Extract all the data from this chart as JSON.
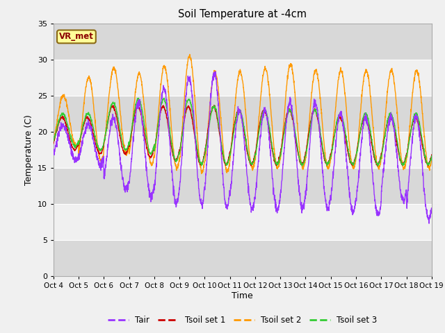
{
  "title": "Soil Temperature at -4cm",
  "xlabel": "Time",
  "ylabel": "Temperature (C)",
  "ylim": [
    0,
    35
  ],
  "yticks": [
    0,
    5,
    10,
    15,
    20,
    25,
    30,
    35
  ],
  "background_color": "#f0f0f0",
  "plot_bg_light": "#f0f0f0",
  "plot_bg_dark": "#d8d8d8",
  "grid_color": "#ffffff",
  "annotation_text": "VR_met",
  "annotation_bg": "#ffff99",
  "annotation_fg": "#8b0000",
  "annotation_edge": "#8b6914",
  "colors": {
    "Tair": "#9933ff",
    "Tsoil1": "#cc0000",
    "Tsoil2": "#ff9900",
    "Tsoil3": "#33cc33"
  },
  "legend_labels": [
    "Tair",
    "Tsoil set 1",
    "Tsoil set 2",
    "Tsoil set 3"
  ],
  "n_days": 15,
  "points_per_day": 144,
  "start_day": 4
}
